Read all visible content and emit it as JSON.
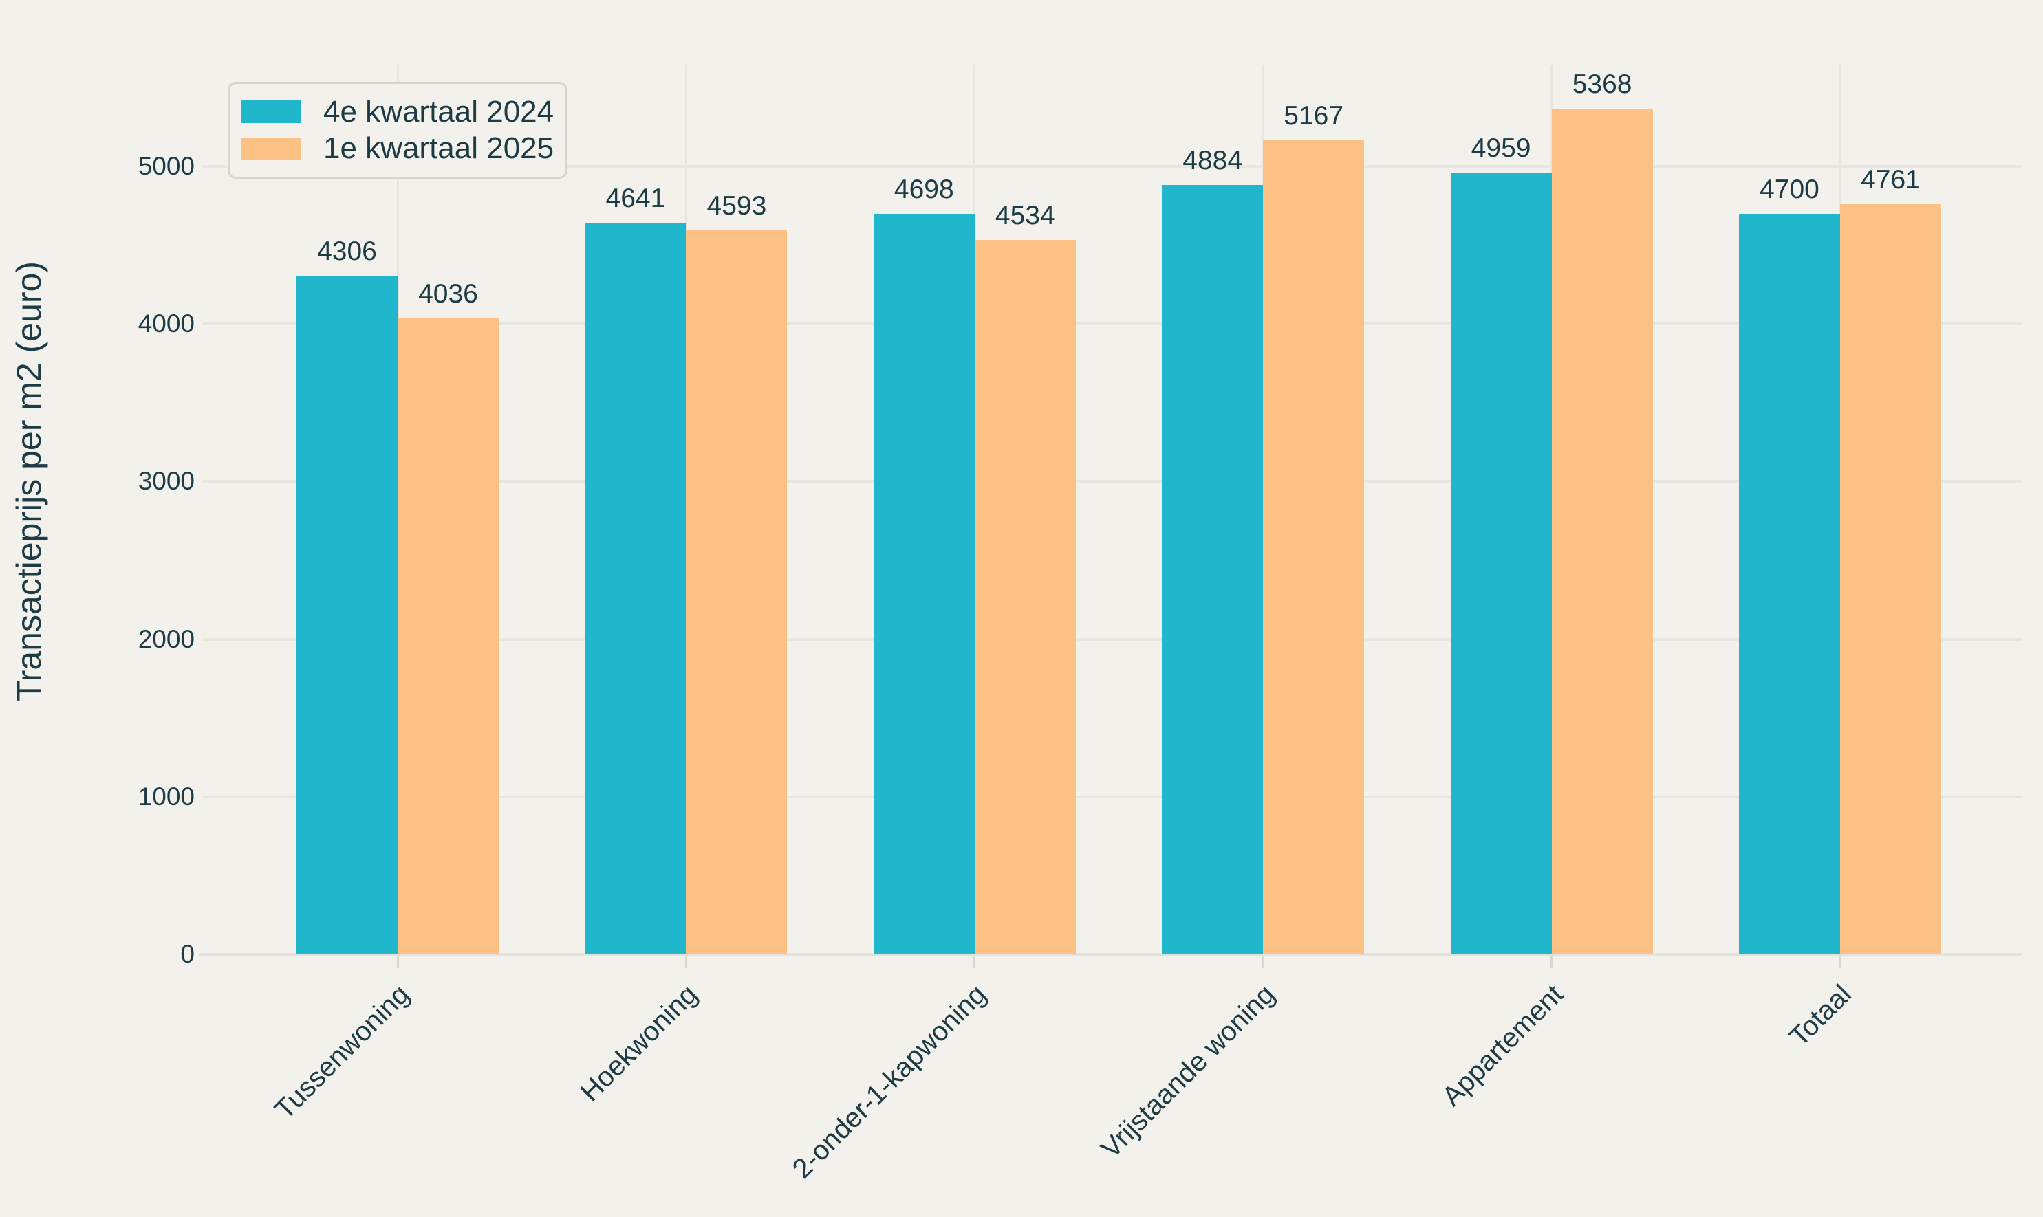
{
  "chart_data": {
    "type": "bar",
    "title": "",
    "xlabel": "",
    "ylabel": "Transactieprijs per m2 (euro)",
    "categories": [
      "Tussenwoning",
      "Hoekwoning",
      "2-onder-1-kapwoning",
      "Vrijstaande woning",
      "Appartement",
      "Totaal"
    ],
    "series": [
      {
        "name": "4e kwartaal 2024",
        "color": "#20b6cb",
        "values": [
          4306,
          4641,
          4698,
          4884,
          4959,
          4700
        ]
      },
      {
        "name": "1e kwartaal 2025",
        "color": "#fec185",
        "values": [
          4036,
          4593,
          4534,
          5167,
          5368,
          4761
        ]
      }
    ],
    "bar_value_labels": {
      "4e kwartaal 2024": [
        "4306",
        "4641",
        "4698",
        "4884",
        "4959",
        "4700"
      ],
      "1e kwartaal 2025": [
        "4036",
        "4593",
        "4534",
        "5167",
        "5368",
        "4761"
      ]
    },
    "yticks": [
      "0",
      "1000",
      "2000",
      "3000",
      "4000",
      "5000"
    ],
    "ylim": [
      0,
      5650
    ],
    "grid": true,
    "legend_position": "top-left"
  },
  "colors": {
    "background": "#f2f1ec",
    "gridline": "#e7e6e0",
    "axis_line": "#e3e2dc",
    "text": "#1d3b45",
    "series_1": "#20b6cb",
    "series_2": "#fec185",
    "legend_border": "#d6d5cf"
  }
}
